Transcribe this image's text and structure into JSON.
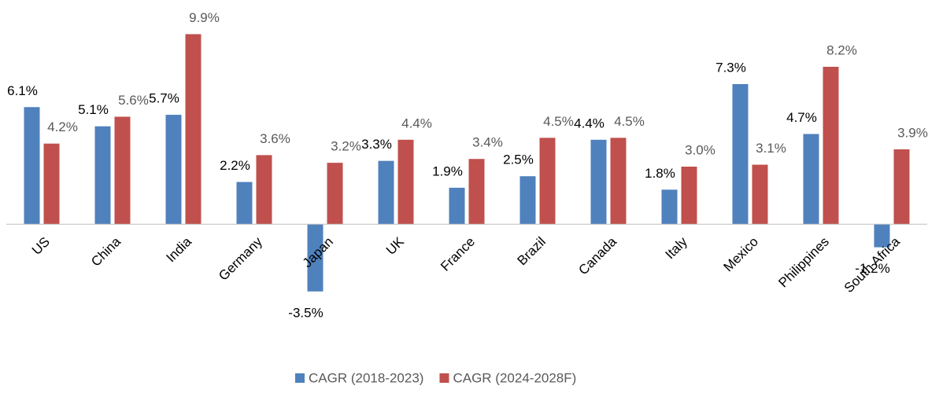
{
  "chart_data": {
    "type": "bar",
    "categories": [
      "US",
      "China",
      "India",
      "Germany",
      "Japan",
      "UK",
      "France",
      "Brazil",
      "Canada",
      "Italy",
      "Mexico",
      "Philippines",
      "South Africa"
    ],
    "series": [
      {
        "name": "CAGR (2018-2023)",
        "color": "#4f81bd",
        "values": [
          6.1,
          5.1,
          5.7,
          2.2,
          -3.5,
          3.3,
          1.9,
          2.5,
          4.4,
          1.8,
          7.3,
          4.7,
          -1.2
        ],
        "value_labels": [
          "6.1%",
          "5.1%",
          "5.7%",
          "2.2%",
          "-3.5%",
          "3.3%",
          "1.9%",
          "2.5%",
          "4.4%",
          "1.8%",
          "7.3%",
          "4.7%",
          "-1.2%"
        ]
      },
      {
        "name": "CAGR (2024-2028F)",
        "color": "#c0504d",
        "values": [
          4.2,
          5.6,
          9.9,
          3.6,
          3.2,
          4.4,
          3.4,
          4.5,
          4.5,
          3.0,
          3.1,
          8.2,
          3.9
        ],
        "value_labels": [
          "4.2%",
          "5.6%",
          "9.9%",
          "3.6%",
          "3.2%",
          "4.4%",
          "3.4%",
          "4.5%",
          "4.5%",
          "3.0%",
          "3.1%",
          "8.2%",
          "3.9%"
        ]
      }
    ],
    "ylim": [
      -4,
      10
    ],
    "legend": "bottom"
  }
}
